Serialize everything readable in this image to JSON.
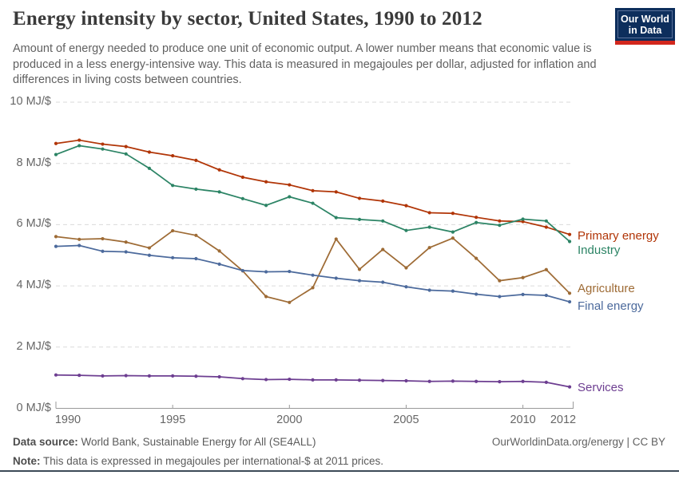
{
  "header": {
    "title": "Energy intensity by sector, United States, 1990 to 2012",
    "subtitle": "Amount of energy needed to produce one unit of economic output. A lower number means that economic value is produced in a less energy-intensive way. This data is measured in megajoules per dollar, adjusted for inflation and differences in living costs between countries.",
    "logo": {
      "line1": "Our World",
      "line2": "in Data"
    }
  },
  "footer": {
    "datasource_label": "Data source:",
    "datasource_value": " World Bank, Sustainable Energy for All (SE4ALL)",
    "link": "OurWorldinData.org/energy | CC BY",
    "note_label": "Note:",
    "note_value": " This data is expressed in megajoules per international-$ at 2011 prices."
  },
  "chart_data": {
    "type": "line",
    "title": "Energy intensity by sector, United States, 1990 to 2012",
    "unit": "MJ/$",
    "grid": "horizontal-dashed",
    "legend_position": "right-of-line-ends",
    "ylim": [
      0,
      10
    ],
    "yticks": [
      0,
      2,
      4,
      6,
      8,
      10
    ],
    "ytick_labels": [
      "0 MJ/$",
      "2 MJ/$",
      "4 MJ/$",
      "6 MJ/$",
      "8 MJ/$",
      "10 MJ/$"
    ],
    "xticks": [
      1990,
      1995,
      2000,
      2005,
      2010,
      2012
    ],
    "x": [
      1990,
      1991,
      1992,
      1993,
      1994,
      1995,
      1996,
      1997,
      1998,
      1999,
      2000,
      2001,
      2002,
      2003,
      2004,
      2005,
      2006,
      2007,
      2008,
      2009,
      2010,
      2011,
      2012
    ],
    "series": [
      {
        "name": "Primary energy",
        "color": "#B13507",
        "values": [
          8.65,
          8.76,
          8.63,
          8.55,
          8.37,
          8.25,
          8.1,
          7.79,
          7.55,
          7.4,
          7.3,
          7.11,
          7.07,
          6.86,
          6.77,
          6.62,
          6.39,
          6.37,
          6.24,
          6.12,
          6.1,
          5.92,
          5.68
        ]
      },
      {
        "name": "Industry",
        "color": "#2C8465",
        "values": [
          8.29,
          8.58,
          8.47,
          8.31,
          7.84,
          7.28,
          7.16,
          7.07,
          6.85,
          6.63,
          6.91,
          6.7,
          6.23,
          6.17,
          6.12,
          5.81,
          5.92,
          5.76,
          6.07,
          5.98,
          6.18,
          6.12,
          5.45
        ]
      },
      {
        "name": "Agriculture",
        "color": "#9E6B35",
        "values": [
          5.61,
          5.52,
          5.54,
          5.43,
          5.24,
          5.8,
          5.65,
          5.14,
          4.49,
          3.65,
          3.46,
          3.94,
          5.53,
          4.54,
          5.19,
          4.59,
          5.25,
          5.56,
          4.9,
          4.17,
          4.27,
          4.53,
          3.76
        ]
      },
      {
        "name": "Final energy",
        "color": "#4C6A9C",
        "values": [
          5.29,
          5.32,
          5.13,
          5.11,
          5.0,
          4.92,
          4.89,
          4.71,
          4.5,
          4.46,
          4.47,
          4.35,
          4.25,
          4.17,
          4.12,
          3.97,
          3.86,
          3.83,
          3.73,
          3.65,
          3.72,
          3.69,
          3.48
        ]
      },
      {
        "name": "Services",
        "color": "#6D3E91",
        "values": [
          1.09,
          1.08,
          1.06,
          1.07,
          1.06,
          1.06,
          1.05,
          1.03,
          0.97,
          0.94,
          0.95,
          0.93,
          0.93,
          0.92,
          0.91,
          0.9,
          0.88,
          0.89,
          0.88,
          0.87,
          0.88,
          0.85,
          0.7
        ]
      }
    ]
  }
}
